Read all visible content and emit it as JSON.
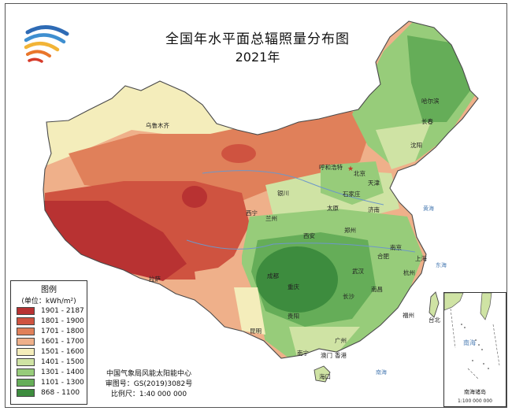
{
  "title": "全国年水平面总辐照量分布图",
  "year": "2021年",
  "legend": {
    "title": "图例",
    "unit": "(单位：kWh/m²)",
    "classes": [
      {
        "label": "1901 - 2187",
        "color": "#b83232"
      },
      {
        "label": "1801 - 1900",
        "color": "#cf5340"
      },
      {
        "label": "1701 - 1800",
        "color": "#e0805a"
      },
      {
        "label": "1601 - 1700",
        "color": "#efb08a"
      },
      {
        "label": "1501 - 1600",
        "color": "#f4edbb"
      },
      {
        "label": "1401 - 1500",
        "color": "#cfe3a4"
      },
      {
        "label": "1301 - 1400",
        "color": "#97cc7a"
      },
      {
        "label": "1101 - 1300",
        "color": "#65ad58"
      },
      {
        "label": "868 - 1100",
        "color": "#3d8c3e"
      }
    ]
  },
  "credits": {
    "org": "中国气象局风能太阳能中心",
    "review_number": "审图号：GS(2019)3082号",
    "scale": "比例尺：1:40 000 000"
  },
  "inset": {
    "label": "南海诸岛",
    "scale": "1:100 000 000",
    "sea_label": "南海"
  },
  "places": [
    "乌鲁木齐",
    "哈尔滨",
    "长春",
    "沈阳",
    "呼和浩特",
    "北京",
    "天津",
    "银川",
    "石家庄",
    "太原",
    "济南",
    "西宁",
    "兰州",
    "郑州",
    "西安",
    "南京",
    "合肥",
    "上海",
    "拉萨",
    "成都",
    "武汉",
    "杭州",
    "重庆",
    "长沙",
    "南昌",
    "贵阳",
    "福州",
    "台北",
    "昆明",
    "广州",
    "南宁",
    "澳门",
    "香港",
    "海口"
  ],
  "sea_labels": [
    "黄海",
    "东海",
    "南海"
  ]
}
